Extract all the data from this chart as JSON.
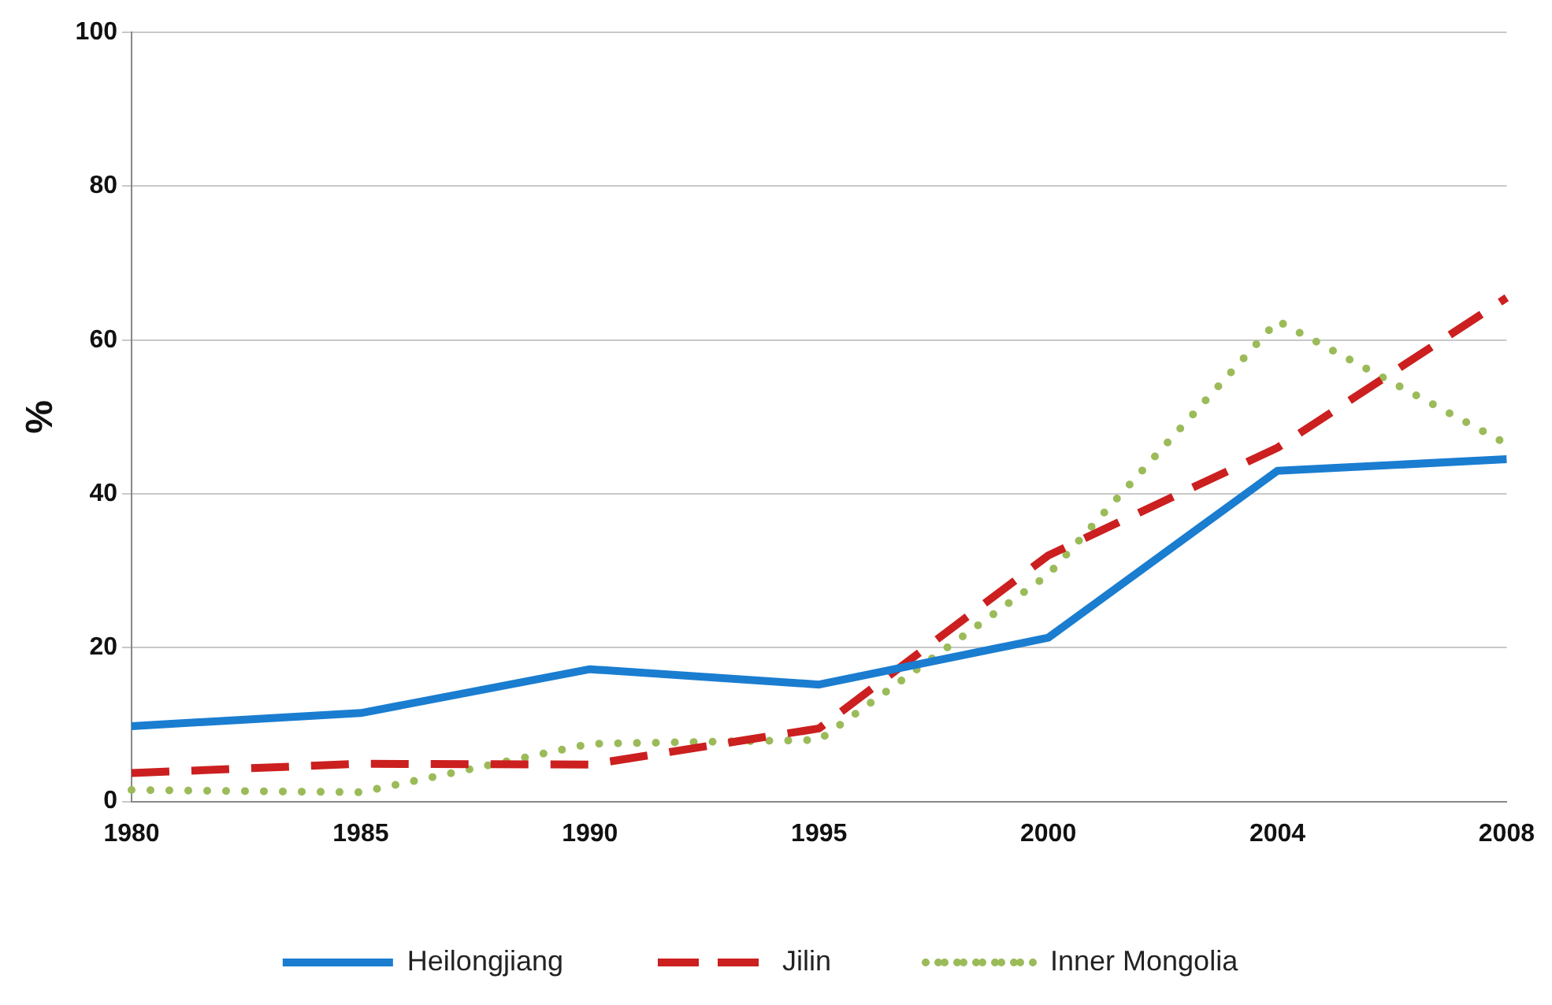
{
  "chart_data": {
    "type": "line",
    "ylabel": "%",
    "categories": [
      "1980",
      "1985",
      "1990",
      "1995",
      "2000",
      "2004",
      "2008"
    ],
    "series": [
      {
        "name": "Heilongjiang",
        "color": "#1a7dd0",
        "line_style": "solid",
        "values": [
          9.8,
          11.5,
          17.2,
          15.2,
          21.3,
          43,
          44.5
        ]
      },
      {
        "name": "Jilin",
        "color": "#cc1f1f",
        "line_style": "dashed",
        "values": [
          3.7,
          4.9,
          4.8,
          9.5,
          32,
          46,
          65.5
        ]
      },
      {
        "name": "Inner Mongolia",
        "color": "#9bbb59",
        "line_style": "dotted",
        "values": [
          1.5,
          1.2,
          7.5,
          8,
          29.5,
          62.5,
          46.5
        ]
      }
    ],
    "ylim": [
      0,
      100
    ],
    "yticks": [
      0,
      20,
      40,
      60,
      80,
      100
    ],
    "grid": "y",
    "legend": "bottom",
    "marker": "none"
  }
}
